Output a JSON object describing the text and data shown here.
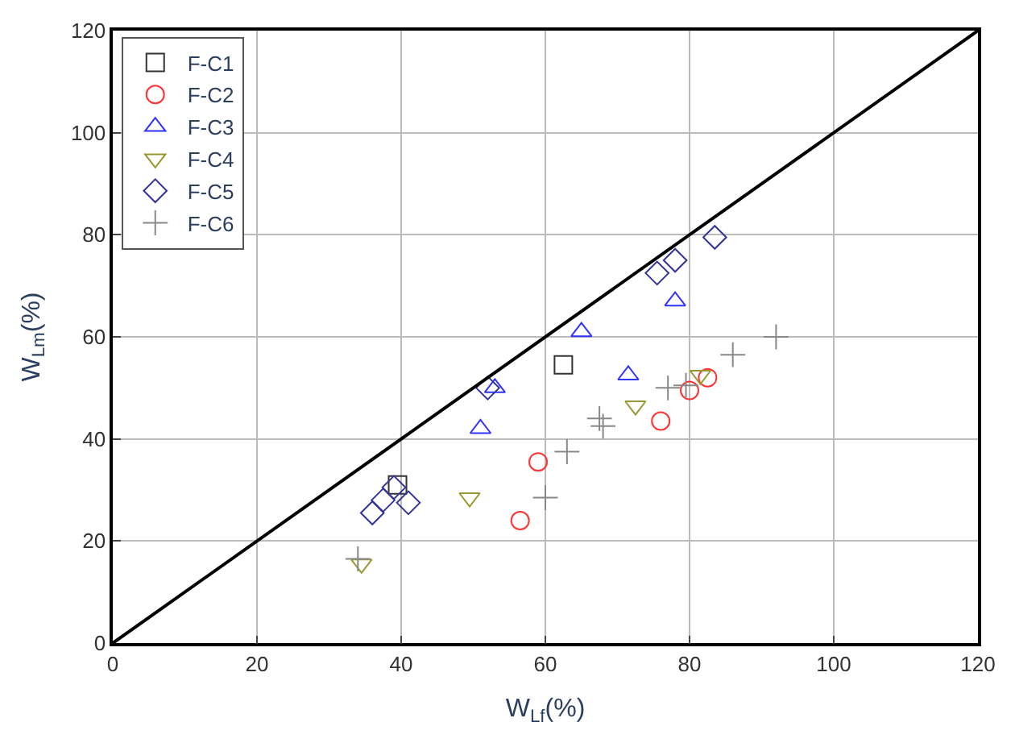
{
  "chart_data": {
    "type": "scatter",
    "xlabel": "W$_{Lf}$(%)",
    "ylabel": "W$_{Lm}$(%)",
    "xlim": [
      0,
      120
    ],
    "ylim": [
      0,
      120
    ],
    "xticks": [
      0,
      20,
      40,
      60,
      80,
      100,
      120
    ],
    "yticks": [
      0,
      20,
      40,
      60,
      80,
      100,
      120
    ],
    "grid": true,
    "legend": "top left",
    "series": [
      {
        "name": "F-C1",
        "color": "#333333",
        "marker": "square",
        "x": [
          62.5,
          39.5
        ],
        "values": [
          54.5,
          31
        ]
      },
      {
        "name": "F-C2",
        "color": "#ff3333",
        "marker": "circle",
        "x": [
          82.5,
          80,
          76,
          59,
          56.5
        ],
        "values": [
          52,
          49.5,
          43.5,
          35.5,
          24
        ]
      },
      {
        "name": "F-C3",
        "color": "#3333ff",
        "marker": "triangle",
        "x": [
          78,
          65,
          53,
          71.5,
          51
        ],
        "values": [
          67,
          61,
          50,
          52.5,
          42
        ]
      },
      {
        "name": "F-C4",
        "color": "#999933",
        "marker": "triangle-down",
        "x": [
          81.5,
          72.5,
          49.5,
          34.5
        ],
        "values": [
          52.5,
          46.5,
          28.5,
          15.5
        ]
      },
      {
        "name": "F-C5",
        "color": "#333399",
        "marker": "diamond",
        "x": [
          83.5,
          78,
          75.5,
          52,
          41,
          39,
          36,
          37.5
        ],
        "values": [
          79.5,
          75,
          72.5,
          50,
          27.5,
          30.5,
          25.5,
          28
        ]
      },
      {
        "name": "F-C6",
        "color": "#888888",
        "marker": "cross",
        "x": [
          92,
          86,
          77,
          79.5,
          67.5,
          68,
          63,
          60,
          34
        ],
        "values": [
          60,
          56.5,
          50,
          50.5,
          44,
          42.5,
          37.5,
          28.5,
          16.5
        ]
      },
      {
        "type": "line",
        "color": "#000000",
        "marker": "none",
        "x": [
          0,
          120
        ],
        "values": [
          0,
          120
        ]
      }
    ]
  }
}
